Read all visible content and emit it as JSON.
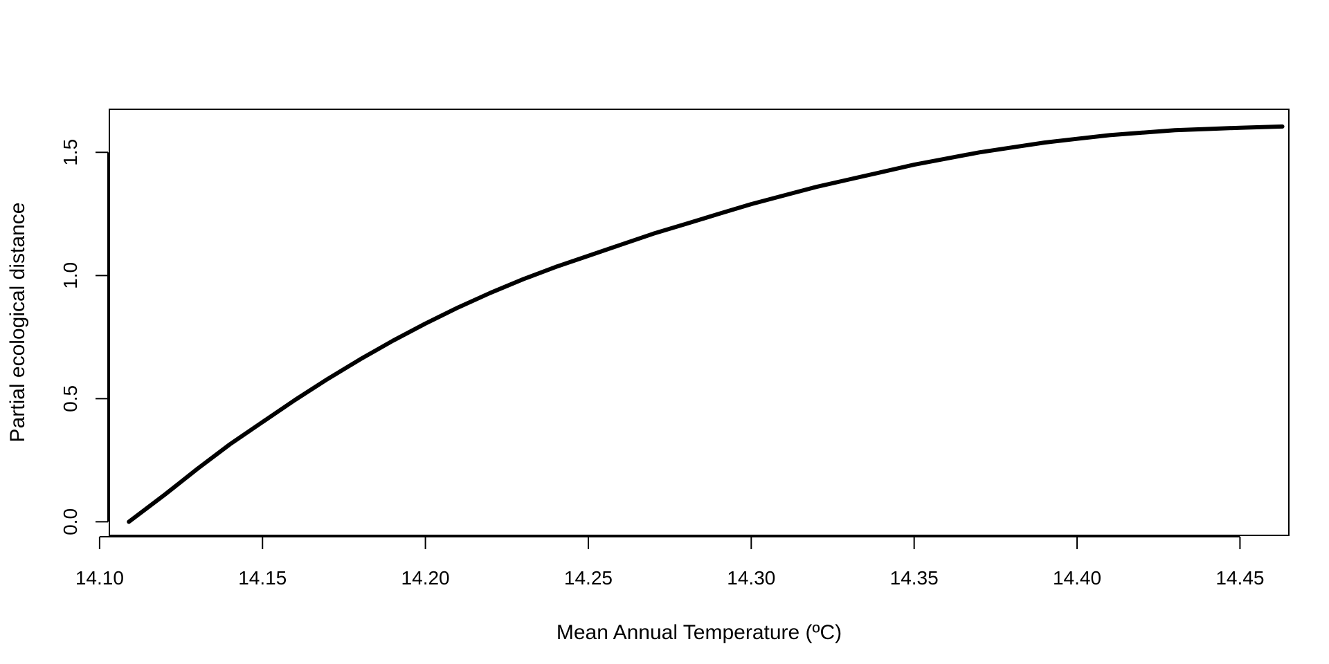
{
  "chart_data": {
    "type": "line",
    "title": "",
    "xlabel": "Mean Annual Temperature (ºC)",
    "ylabel": "Partial ecological distance",
    "xlim": [
      14.103,
      14.465
    ],
    "ylim": [
      -0.055,
      1.675
    ],
    "x_ticks": [
      14.1,
      14.15,
      14.2,
      14.25,
      14.3,
      14.35,
      14.4,
      14.45
    ],
    "x_tick_labels": [
      "14.10",
      "14.15",
      "14.20",
      "14.25",
      "14.30",
      "14.35",
      "14.40",
      "14.45"
    ],
    "y_ticks": [
      0.0,
      0.5,
      1.0,
      1.5
    ],
    "y_tick_labels": [
      "0.0",
      "0.5",
      "1.0",
      "1.5"
    ],
    "grid": false,
    "legend": "none",
    "series": [
      {
        "color": "#000000",
        "x": [
          14.109,
          14.12,
          14.13,
          14.14,
          14.15,
          14.16,
          14.17,
          14.18,
          14.19,
          14.2,
          14.21,
          14.22,
          14.23,
          14.24,
          14.25,
          14.26,
          14.27,
          14.28,
          14.29,
          14.3,
          14.31,
          14.32,
          14.33,
          14.34,
          14.35,
          14.36,
          14.37,
          14.38,
          14.39,
          14.4,
          14.41,
          14.42,
          14.43,
          14.44,
          14.45,
          14.463
        ],
        "y": [
          0.0,
          0.11,
          0.215,
          0.315,
          0.405,
          0.495,
          0.58,
          0.66,
          0.735,
          0.805,
          0.87,
          0.93,
          0.985,
          1.035,
          1.08,
          1.125,
          1.17,
          1.21,
          1.25,
          1.29,
          1.325,
          1.36,
          1.39,
          1.42,
          1.45,
          1.475,
          1.5,
          1.52,
          1.54,
          1.555,
          1.57,
          1.58,
          1.59,
          1.595,
          1.6,
          1.605
        ]
      }
    ]
  }
}
